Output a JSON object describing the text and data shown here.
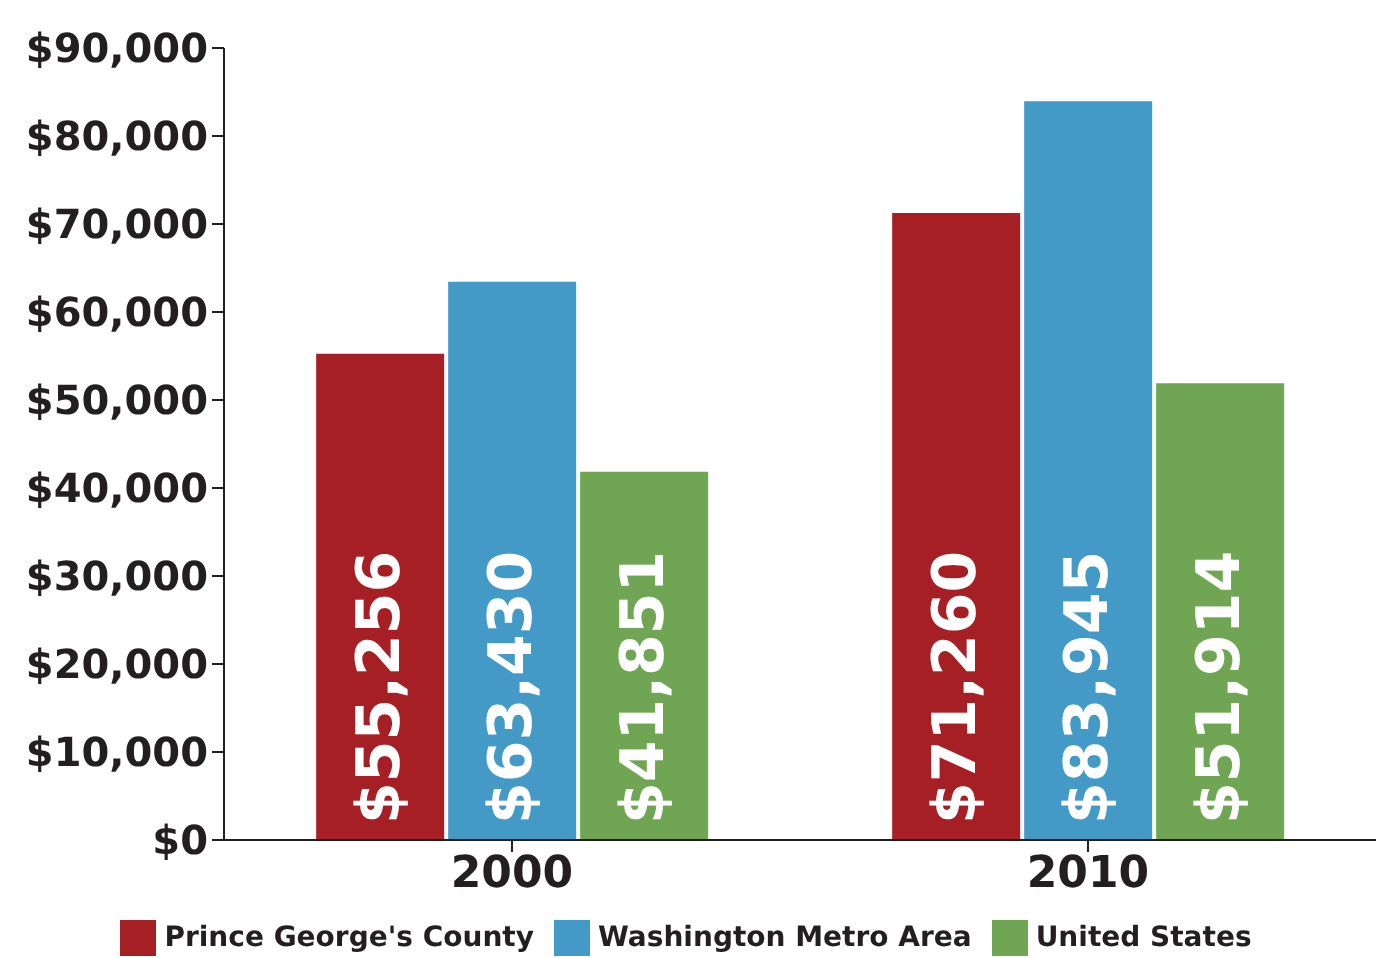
{
  "chart_data": {
    "type": "bar",
    "categories": [
      "2000",
      "2010"
    ],
    "series": [
      {
        "name": "Prince George's County",
        "color": "#a61f24",
        "values": [
          55256,
          71260
        ],
        "value_labels": [
          "$55,256",
          "$71,260"
        ]
      },
      {
        "name": "Washington Metro Area",
        "color": "#449ac7",
        "values": [
          63430,
          83945
        ],
        "value_labels": [
          "$63,430",
          "$83,945"
        ]
      },
      {
        "name": "United States",
        "color": "#70a653",
        "values": [
          41851,
          51914
        ],
        "value_labels": [
          "$41,851",
          "$51,914"
        ]
      }
    ],
    "ylim": [
      0,
      90000
    ],
    "yticks": [
      {
        "value": 0,
        "label": "$0"
      },
      {
        "value": 10000,
        "label": "$10,000"
      },
      {
        "value": 20000,
        "label": "$20,000"
      },
      {
        "value": 30000,
        "label": "$30,000"
      },
      {
        "value": 40000,
        "label": "$40,000"
      },
      {
        "value": 50000,
        "label": "$50,000"
      },
      {
        "value": 60000,
        "label": "$60,000"
      },
      {
        "value": 70000,
        "label": "$70,000"
      },
      {
        "value": 80000,
        "label": "$80,000"
      },
      {
        "value": 90000,
        "label": "$90,000"
      }
    ],
    "grid": false,
    "legend": "bottom"
  }
}
